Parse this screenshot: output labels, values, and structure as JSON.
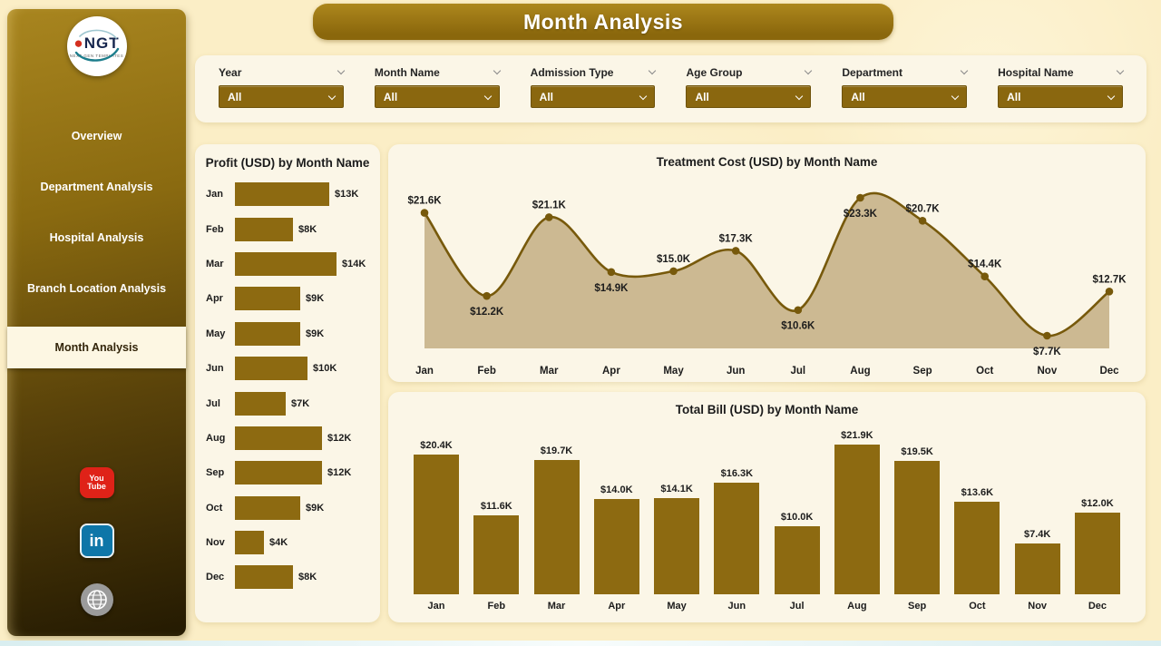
{
  "app": {
    "title": "Month Analysis"
  },
  "sidebar": {
    "logo": {
      "text": "NGT",
      "subtext": "NEXT GEN TEMPLATES"
    },
    "items": [
      {
        "label": "Overview",
        "active": false
      },
      {
        "label": "Department Analysis",
        "active": false
      },
      {
        "label": "Hospital Analysis",
        "active": false
      },
      {
        "label": "Branch Location Analysis",
        "active": false
      },
      {
        "label": "Month Analysis",
        "active": true
      }
    ],
    "social": [
      {
        "name": "youtube",
        "text_top": "You",
        "text_bottom": "Tube"
      },
      {
        "name": "linkedin",
        "text": "in"
      },
      {
        "name": "website"
      }
    ]
  },
  "filters": [
    {
      "label": "Year",
      "value": "All"
    },
    {
      "label": "Month Name",
      "value": "All"
    },
    {
      "label": "Admission Type",
      "value": "All"
    },
    {
      "label": "Age Group",
      "value": "All"
    },
    {
      "label": "Department",
      "value": "All"
    },
    {
      "label": "Hospital Name",
      "value": "All"
    }
  ],
  "chart_data": [
    {
      "type": "bar",
      "orientation": "horizontal",
      "title": "Profit (USD) by Month Name",
      "categories": [
        "Jan",
        "Feb",
        "Mar",
        "Apr",
        "May",
        "Jun",
        "Jul",
        "Aug",
        "Sep",
        "Oct",
        "Nov",
        "Dec"
      ],
      "values": [
        13,
        8,
        14,
        9,
        9,
        10,
        7,
        12,
        12,
        9,
        4,
        8
      ],
      "labels": [
        "$13K",
        "$8K",
        "$14K",
        "$9K",
        "$9K",
        "$10K",
        "$7K",
        "$12K",
        "$12K",
        "$9K",
        "$4K",
        "$8K"
      ],
      "xlabel": "Profit (USD)",
      "ylabel": "Month Name",
      "xlim": [
        0,
        14
      ],
      "grid": false,
      "legend": "none"
    },
    {
      "type": "area",
      "title": "Treatment Cost (USD) by Month Name",
      "categories": [
        "Jan",
        "Feb",
        "Mar",
        "Apr",
        "May",
        "Jun",
        "Jul",
        "Aug",
        "Sep",
        "Oct",
        "Nov",
        "Dec"
      ],
      "values": [
        21.6,
        12.2,
        21.1,
        14.9,
        15.0,
        17.3,
        10.6,
        23.3,
        20.7,
        14.4,
        7.7,
        12.7
      ],
      "labels": [
        "$21.6K",
        "$12.2K",
        "$21.1K",
        "$14.9K",
        "$15.0K",
        "$17.3K",
        "$10.6K",
        "$23.3K",
        "$20.7K",
        "$14.4K",
        "$7.7K",
        "$12.7K"
      ],
      "label_side": [
        "above",
        "below",
        "above",
        "below",
        "above",
        "above",
        "below",
        "below",
        "above",
        "above",
        "below",
        "above"
      ],
      "xlabel": "Month Name",
      "ylabel": "Treatment Cost (USD)",
      "ylim": [
        6,
        24.5
      ],
      "grid": false,
      "legend": "none"
    },
    {
      "type": "bar",
      "orientation": "vertical",
      "title": "Total Bill (USD) by Month Name",
      "categories": [
        "Jan",
        "Feb",
        "Mar",
        "Apr",
        "May",
        "Jun",
        "Jul",
        "Aug",
        "Sep",
        "Oct",
        "Nov",
        "Dec"
      ],
      "values": [
        20.4,
        11.6,
        19.7,
        14.0,
        14.1,
        16.3,
        10.0,
        21.9,
        19.5,
        13.6,
        7.4,
        12.0
      ],
      "labels": [
        "$20.4K",
        "$11.6K",
        "$19.7K",
        "$14.0K",
        "$14.1K",
        "$16.3K",
        "$10.0K",
        "$21.9K",
        "$19.5K",
        "$13.6K",
        "$7.4K",
        "$12.0K"
      ],
      "xlabel": "Month Name",
      "ylabel": "Total Bill (USD)",
      "ylim": [
        0,
        24
      ],
      "grid": false,
      "legend": "none"
    }
  ],
  "colors": {
    "gold": "#8d6a11",
    "gold_dark": "#6e520a",
    "page_bg": "#fbeec6",
    "panel_bg": "#fbf6e7",
    "sidebar_active_bg": "#fdf7e3",
    "line": "#77590b",
    "area_fill": "#c9b58d",
    "label_text": "#1c1c1c",
    "youtube_red": "#df2218",
    "linkedin_blue": "#0e76a8"
  }
}
